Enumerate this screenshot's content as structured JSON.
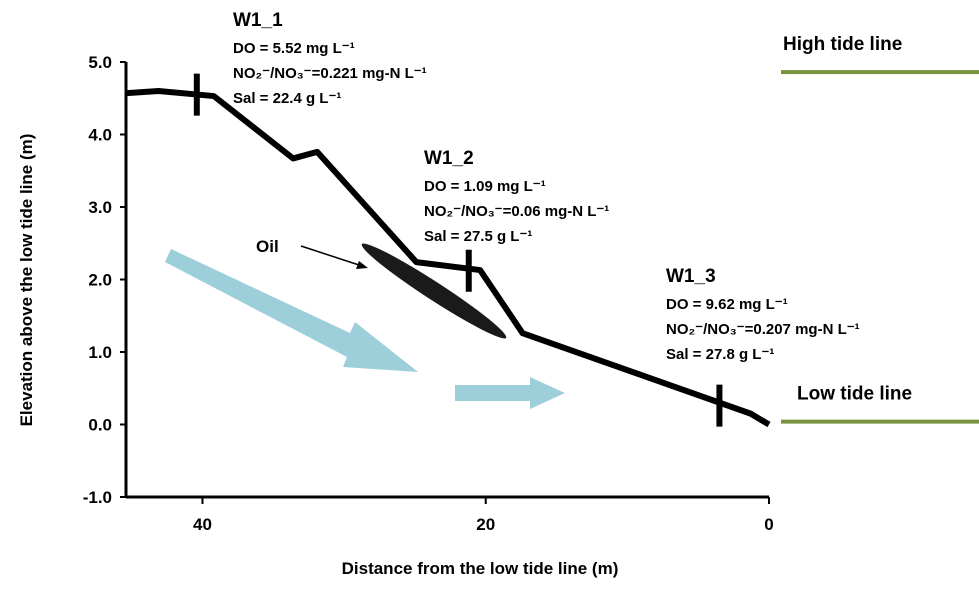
{
  "chart_data": {
    "type": "line",
    "x_label": "Distance from the low tide line (m)",
    "y_label": "Elevation above the low tide line (m)",
    "x": [
      45.4,
      43.1,
      39.2,
      33.6,
      31.9,
      24.9,
      20.4,
      17.4,
      1.3,
      0
    ],
    "values": [
      4.57,
      4.6,
      4.53,
      3.67,
      3.76,
      2.24,
      2.13,
      1.26,
      0.15,
      0
    ],
    "color": "#000000",
    "xlim": [
      45.4,
      0
    ],
    "ylim": [
      -1,
      5
    ],
    "xticks": [
      40,
      20,
      0
    ],
    "yticks": [
      {
        "value": 5,
        "label": "5.0"
      },
      {
        "value": 4,
        "label": "4.0"
      },
      {
        "value": 3,
        "label": "3.0"
      },
      {
        "value": 2,
        "label": "2.0"
      },
      {
        "value": 1,
        "label": "1.0"
      },
      {
        "value": 0,
        "label": "0.0"
      },
      {
        "value": -1,
        "label": "-1.0"
      }
    ],
    "stations": [
      {
        "label": "W1_1",
        "x": 40.4,
        "y": 4.55,
        "lines": [
          "DO = 5.52 mg L⁻¹",
          "NO₂⁻/NO₃⁻=0.221 mg-N L⁻¹",
          "Sal = 22.4 g L⁻¹"
        ]
      },
      {
        "label": "W1_2",
        "x": 21.2,
        "y": 2.12,
        "lines": [
          "DO = 1.09 mg L⁻¹",
          "NO₂⁻/NO₃⁻=0.06 mg-N L⁻¹",
          "Sal = 27.5 g L⁻¹"
        ]
      },
      {
        "label": "W1_3",
        "x": 3.5,
        "y": 0.26,
        "lines": [
          "DO = 9.62 mg L⁻¹",
          "NO₂⁻/NO₃⁻=0.207 mg-N L⁻¹",
          "Sal = 27.8 g L⁻¹"
        ]
      }
    ],
    "tide_lines": [
      {
        "label": "High tide line",
        "y": 4.86,
        "color": "#77933c"
      },
      {
        "label": "Low tide line",
        "y": 0.04,
        "color": "#77933c"
      }
    ],
    "oil_label": "Oil"
  }
}
